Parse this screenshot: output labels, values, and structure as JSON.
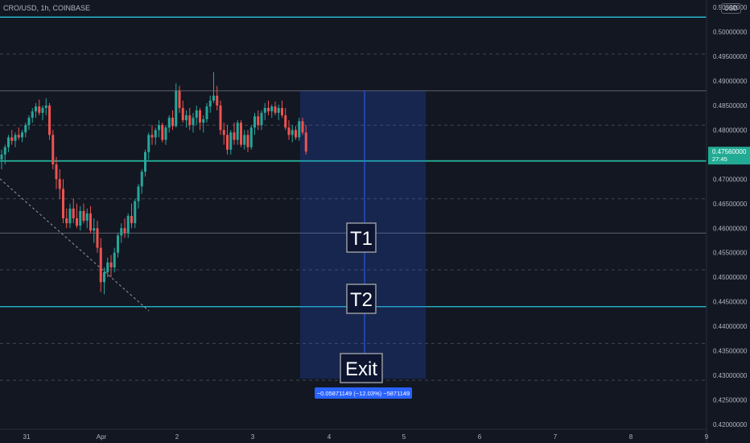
{
  "header": {
    "symbol": "CRO/USD, 1h, COINBASE",
    "currency": "USD"
  },
  "price_tag": {
    "price": "0.47560000",
    "countdown": "27:45"
  },
  "measure": {
    "label": "−0.05871149 (−12.03%) −5871149"
  },
  "colors": {
    "background": "#131722",
    "up": "#26a69a",
    "down": "#ef5350",
    "support": "#22ab94",
    "cyan_level": "#26c6da",
    "box": "#2962ff"
  },
  "chart_data": {
    "type": "candlestick",
    "title": "",
    "y_ticks": [
      "0.50500000",
      "0.50000000",
      "0.49500000",
      "0.49000000",
      "0.48500000",
      "0.48000000",
      "0.47500000",
      "0.47000000",
      "0.46500000",
      "0.46000000",
      "0.45500000",
      "0.45000000",
      "0.44500000",
      "0.44000000",
      "0.43500000",
      "0.43000000",
      "0.42500000",
      "0.42000000"
    ],
    "ylim": [
      0.419,
      0.5065
    ],
    "x_ticks": [
      "31",
      "Apr",
      "2",
      "3",
      "4",
      "5",
      "6",
      "7",
      "8",
      "9"
    ],
    "levels": {
      "cyan_top": 0.503,
      "cyan_bottom": 0.444,
      "support_green": 0.4737,
      "grey_solid": [
        0.488,
        0.459
      ],
      "dashed": [
        0.4955,
        0.481,
        0.466,
        0.4515,
        0.4365,
        0.429
      ]
    },
    "targets": [
      "T1",
      "T2",
      "Exit"
    ],
    "measure_range": {
      "high": 0.488,
      "low": 0.4293
    },
    "candles": [
      [
        0.474,
        0.476,
        0.472,
        0.475
      ],
      [
        0.475,
        0.477,
        0.473,
        0.4765
      ],
      [
        0.4765,
        0.479,
        0.4755,
        0.4785
      ],
      [
        0.4785,
        0.48,
        0.477,
        0.4778
      ],
      [
        0.4778,
        0.4795,
        0.4765,
        0.479
      ],
      [
        0.479,
        0.4805,
        0.478,
        0.4785
      ],
      [
        0.4785,
        0.48,
        0.4775,
        0.4795
      ],
      [
        0.4795,
        0.4815,
        0.4785,
        0.481
      ],
      [
        0.481,
        0.483,
        0.48,
        0.4825
      ],
      [
        0.4825,
        0.4845,
        0.4815,
        0.4838
      ],
      [
        0.4838,
        0.4855,
        0.4825,
        0.4848
      ],
      [
        0.4848,
        0.4862,
        0.483,
        0.4835
      ],
      [
        0.4835,
        0.485,
        0.482,
        0.4845
      ],
      [
        0.4845,
        0.4865,
        0.483,
        0.485
      ],
      [
        0.485,
        0.4855,
        0.478,
        0.479
      ],
      [
        0.479,
        0.48,
        0.472,
        0.473
      ],
      [
        0.473,
        0.4745,
        0.468,
        0.47
      ],
      [
        0.47,
        0.472,
        0.466,
        0.468
      ],
      [
        0.468,
        0.47,
        0.461,
        0.462
      ],
      [
        0.462,
        0.464,
        0.46,
        0.461
      ],
      [
        0.461,
        0.465,
        0.46,
        0.464
      ],
      [
        0.464,
        0.466,
        0.461,
        0.462
      ],
      [
        0.462,
        0.465,
        0.46,
        0.4605
      ],
      [
        0.4605,
        0.4645,
        0.4595,
        0.4635
      ],
      [
        0.4635,
        0.465,
        0.461,
        0.4615
      ],
      [
        0.4615,
        0.464,
        0.46,
        0.463
      ],
      [
        0.463,
        0.4645,
        0.459,
        0.4595
      ],
      [
        0.4595,
        0.462,
        0.457,
        0.46
      ],
      [
        0.46,
        0.4615,
        0.455,
        0.456
      ],
      [
        0.456,
        0.458,
        0.447,
        0.449
      ],
      [
        0.449,
        0.452,
        0.4465,
        0.451
      ],
      [
        0.451,
        0.454,
        0.45,
        0.453
      ],
      [
        0.453,
        0.4545,
        0.45,
        0.452
      ],
      [
        0.452,
        0.456,
        0.451,
        0.455
      ],
      [
        0.455,
        0.459,
        0.454,
        0.4585
      ],
      [
        0.4585,
        0.461,
        0.457,
        0.46
      ],
      [
        0.46,
        0.462,
        0.458,
        0.459
      ],
      [
        0.459,
        0.463,
        0.458,
        0.4625
      ],
      [
        0.4625,
        0.465,
        0.46,
        0.461
      ],
      [
        0.461,
        0.466,
        0.46,
        0.4655
      ],
      [
        0.4655,
        0.469,
        0.464,
        0.4685
      ],
      [
        0.4685,
        0.472,
        0.467,
        0.4715
      ],
      [
        0.4715,
        0.476,
        0.4705,
        0.4755
      ],
      [
        0.4755,
        0.4795,
        0.474,
        0.479
      ],
      [
        0.479,
        0.481,
        0.477,
        0.4785
      ],
      [
        0.4785,
        0.4805,
        0.477,
        0.48
      ],
      [
        0.48,
        0.482,
        0.4785,
        0.481
      ],
      [
        0.481,
        0.4815,
        0.4775,
        0.478
      ],
      [
        0.478,
        0.481,
        0.477,
        0.4805
      ],
      [
        0.4805,
        0.483,
        0.4795,
        0.4825
      ],
      [
        0.4825,
        0.484,
        0.48,
        0.4808
      ],
      [
        0.4808,
        0.4895,
        0.4805,
        0.488
      ],
      [
        0.488,
        0.489,
        0.4835,
        0.4845
      ],
      [
        0.4845,
        0.486,
        0.4815,
        0.482
      ],
      [
        0.482,
        0.484,
        0.4805,
        0.483
      ],
      [
        0.483,
        0.4845,
        0.48,
        0.481
      ],
      [
        0.481,
        0.4835,
        0.4795,
        0.4825
      ],
      [
        0.4825,
        0.485,
        0.481,
        0.484
      ],
      [
        0.484,
        0.4845,
        0.48,
        0.4815
      ],
      [
        0.4815,
        0.483,
        0.4795,
        0.4822
      ],
      [
        0.4822,
        0.4855,
        0.4815,
        0.4848
      ],
      [
        0.4848,
        0.487,
        0.4835,
        0.486
      ],
      [
        0.486,
        0.4918,
        0.4855,
        0.487
      ],
      [
        0.487,
        0.489,
        0.484,
        0.485
      ],
      [
        0.485,
        0.486,
        0.479,
        0.48
      ],
      [
        0.48,
        0.4815,
        0.477,
        0.479
      ],
      [
        0.479,
        0.481,
        0.475,
        0.476
      ],
      [
        0.476,
        0.48,
        0.475,
        0.4795
      ],
      [
        0.4795,
        0.4815,
        0.477,
        0.478
      ],
      [
        0.478,
        0.482,
        0.477,
        0.4815
      ],
      [
        0.4815,
        0.482,
        0.4765,
        0.477
      ],
      [
        0.477,
        0.48,
        0.476,
        0.479
      ],
      [
        0.479,
        0.48,
        0.4755,
        0.4765
      ],
      [
        0.4765,
        0.481,
        0.476,
        0.4805
      ],
      [
        0.4805,
        0.4835,
        0.479,
        0.4828
      ],
      [
        0.4828,
        0.484,
        0.48,
        0.481
      ],
      [
        0.481,
        0.484,
        0.48,
        0.4835
      ],
      [
        0.4835,
        0.4855,
        0.482,
        0.4845
      ],
      [
        0.4845,
        0.486,
        0.483,
        0.4838
      ],
      [
        0.4838,
        0.4852,
        0.4825,
        0.4848
      ],
      [
        0.4848,
        0.4858,
        0.483,
        0.4835
      ],
      [
        0.4835,
        0.4852,
        0.482,
        0.4845
      ],
      [
        0.4845,
        0.486,
        0.4825,
        0.483
      ],
      [
        0.483,
        0.4845,
        0.48,
        0.4805
      ],
      [
        0.4805,
        0.482,
        0.478,
        0.479
      ],
      [
        0.479,
        0.481,
        0.4775,
        0.48
      ],
      [
        0.48,
        0.4808,
        0.478,
        0.4785
      ],
      [
        0.4785,
        0.4825,
        0.4778,
        0.4818
      ],
      [
        0.4818,
        0.4825,
        0.479,
        0.4795
      ],
      [
        0.4795,
        0.481,
        0.475,
        0.4756
      ]
    ]
  }
}
